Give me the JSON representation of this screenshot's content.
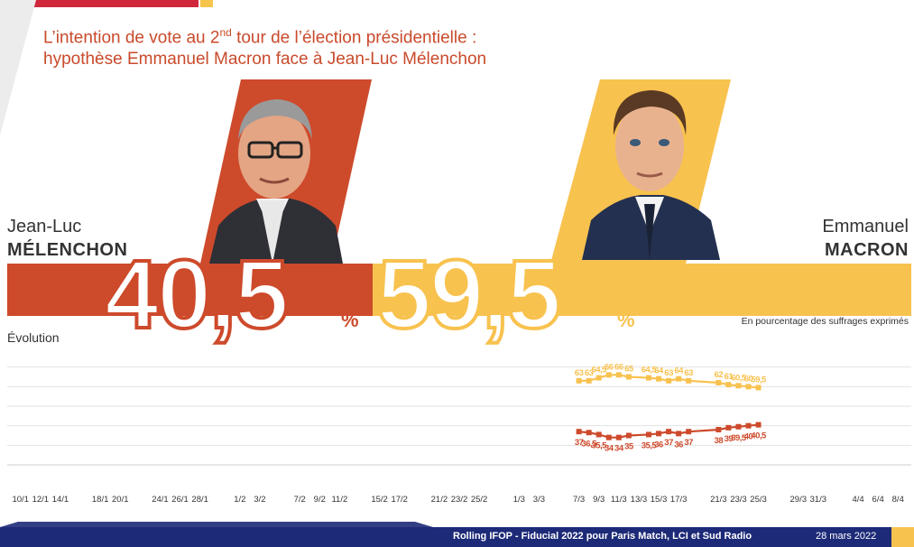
{
  "header": {
    "title_part1": "L’intention de vote au 2",
    "title_sup": "nd",
    "title_part2": " tour de l’élection présidentielle :",
    "title_line2": "hypothèse Emmanuel Macron face à Jean-Luc Mélenchon"
  },
  "candidates": {
    "melenchon": {
      "first_name": "Jean-Luc",
      "last_name": "MÉLENCHON",
      "score": "40,5",
      "pct_sign": "%",
      "color": "#cd4a2b"
    },
    "macron": {
      "first_name": "Emmanuel",
      "last_name": "MACRON",
      "score": "59,5",
      "pct_sign": "%",
      "color": "#f8c24f"
    }
  },
  "subtitle": "En pourcentage des suffrages exprimés",
  "evolution_label": "Évolution",
  "chart_data": {
    "type": "line",
    "x": [
      "10/1",
      "12/1",
      "14/1",
      "18/1",
      "20/1",
      "24/1",
      "26/1",
      "28/1",
      "1/2",
      "3/2",
      "7/2",
      "9/2",
      "11/2",
      "15/2",
      "17/2",
      "21/2",
      "23/2",
      "25/2",
      "1/3",
      "3/3",
      "7/3",
      "9/3",
      "11/3",
      "13/3",
      "15/3",
      "17/3",
      "21/3",
      "23/3",
      "25/3",
      "29/3",
      "31/3",
      "4/4",
      "6/4",
      "8/4"
    ],
    "series": [
      {
        "name": "Emmanuel MACRON",
        "color": "#f8c24f",
        "points": [
          {
            "x": "7/3",
            "y": 63
          },
          {
            "x": "8/3",
            "y": 63
          },
          {
            "x": "9/3",
            "y": 64.5
          },
          {
            "x": "10/3",
            "y": 66
          },
          {
            "x": "11/3",
            "y": 66
          },
          {
            "x": "12/3",
            "y": 65
          },
          {
            "x": "14/3",
            "y": 64.5
          },
          {
            "x": "15/3",
            "y": 64
          },
          {
            "x": "16/3",
            "y": 63
          },
          {
            "x": "17/3",
            "y": 64
          },
          {
            "x": "18/3",
            "y": 63
          },
          {
            "x": "21/3",
            "y": 62
          },
          {
            "x": "22/3",
            "y": 61
          },
          {
            "x": "23/3",
            "y": 60.5
          },
          {
            "x": "24/3",
            "y": 60
          },
          {
            "x": "25/3",
            "y": 59.5
          }
        ],
        "labels": [
          "63",
          "63",
          "64,5",
          "66",
          "66",
          "65",
          "64,5",
          "64",
          "63",
          "64",
          "63",
          "62",
          "61",
          "60,5",
          "60",
          "59,5"
        ]
      },
      {
        "name": "Jean-Luc MÉLENCHON",
        "color": "#cd4a2b",
        "points": [
          {
            "x": "7/3",
            "y": 37
          },
          {
            "x": "8/3",
            "y": 36.5
          },
          {
            "x": "9/3",
            "y": 35.5
          },
          {
            "x": "10/3",
            "y": 34
          },
          {
            "x": "11/3",
            "y": 34
          },
          {
            "x": "12/3",
            "y": 35
          },
          {
            "x": "14/3",
            "y": 35.5
          },
          {
            "x": "15/3",
            "y": 36
          },
          {
            "x": "16/3",
            "y": 37
          },
          {
            "x": "17/3",
            "y": 36
          },
          {
            "x": "18/3",
            "y": 37
          },
          {
            "x": "21/3",
            "y": 38
          },
          {
            "x": "22/3",
            "y": 39
          },
          {
            "x": "23/3",
            "y": 39.5
          },
          {
            "x": "24/3",
            "y": 40
          },
          {
            "x": "25/3",
            "y": 40.5
          }
        ],
        "labels": [
          "37",
          "36,5",
          "35,5",
          "34",
          "34",
          "35",
          "35,5",
          "36",
          "37",
          "36",
          "37",
          "38",
          "39",
          "39,5",
          "40",
          "40,5"
        ]
      }
    ],
    "title": "Évolution",
    "ylim": [
      20,
      80
    ],
    "grid": true
  },
  "footer": {
    "source": "Rolling IFOP - Fiducial 2022 pour Paris Match, LCI et Sud Radio",
    "date": "28 mars 2022"
  }
}
